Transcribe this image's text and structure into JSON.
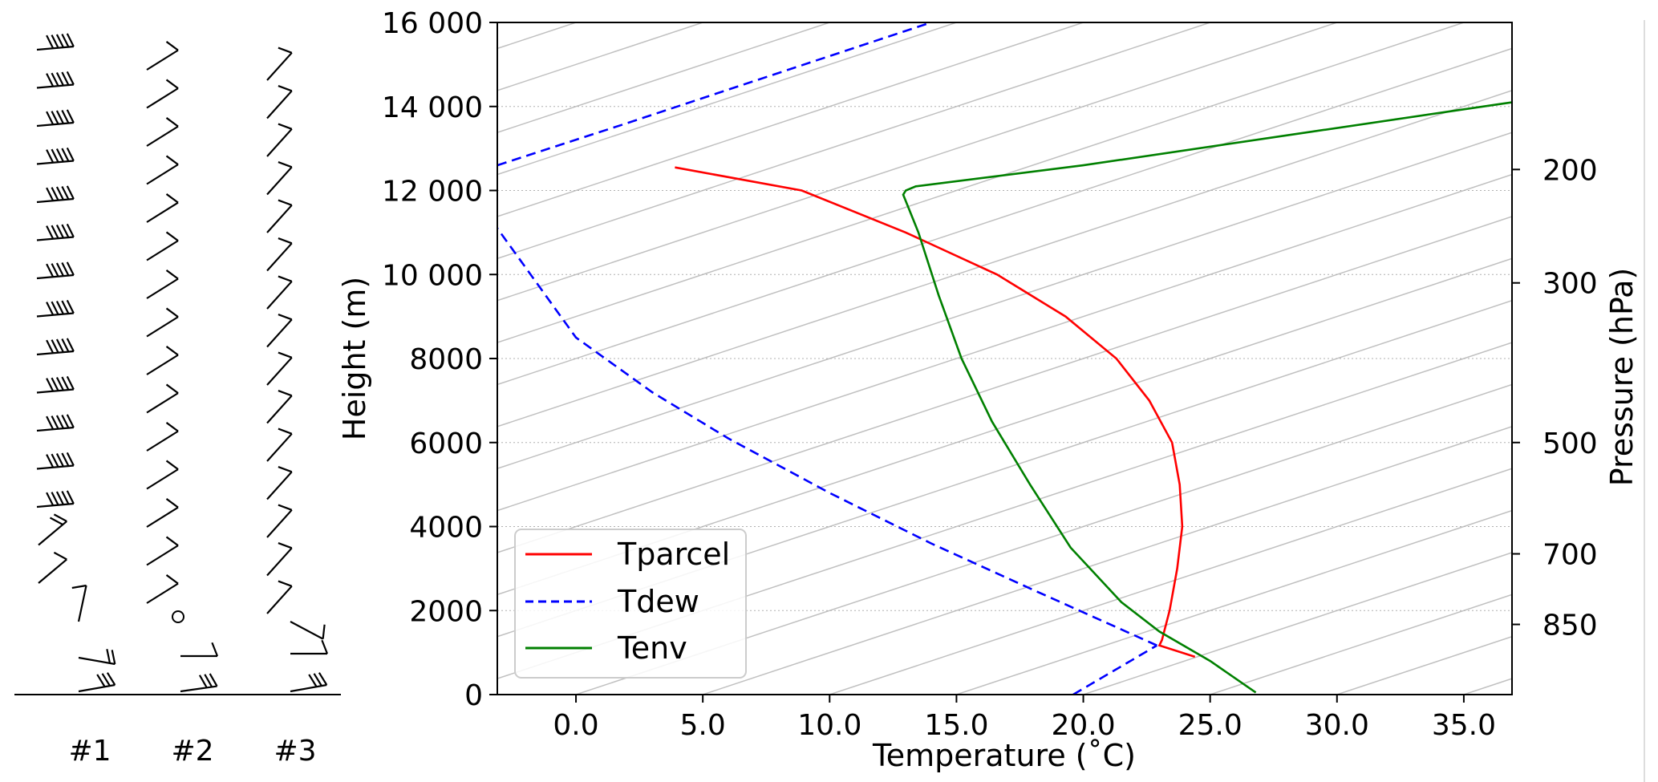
{
  "chart_data": {
    "type": "line",
    "title": "",
    "xlabel": "Temperature (˚C)",
    "ylabel": "Height (m)",
    "y2label": "Pressure (hPa)",
    "xlim": [
      -3.1,
      36.9
    ],
    "ylim": [
      0,
      16000
    ],
    "xticks": [
      0,
      5,
      10,
      15,
      20,
      25,
      30,
      35
    ],
    "xtick_labels": [
      "0.0",
      "5.0",
      "10.0",
      "15.0",
      "20.0",
      "25.0",
      "30.0",
      "35.0"
    ],
    "yticks": [
      0,
      2000,
      4000,
      6000,
      8000,
      10000,
      12000,
      14000,
      16000
    ],
    "ytick_labels": [
      "0",
      "2000",
      "4000",
      "6000",
      "8000",
      "10 000",
      "12 000",
      "14 000",
      "16 000"
    ],
    "pressure_ticks": [
      {
        "label": "200",
        "height": 12500
      },
      {
        "label": "300",
        "height": 9800
      },
      {
        "label": "500",
        "height": 6000
      },
      {
        "label": "700",
        "height": 3350
      },
      {
        "label": "850",
        "height": 1670
      }
    ],
    "grid": "horizontal dotted",
    "skew_isotherms": true,
    "legend_position": "lower-left",
    "series": [
      {
        "name": "Tparcel",
        "color": "#ff0000",
        "style": "solid",
        "points": [
          [
            24.4,
            900
          ],
          [
            23.0,
            1170
          ],
          [
            23.1,
            1300
          ],
          [
            23.4,
            2000
          ],
          [
            23.7,
            3000
          ],
          [
            23.9,
            4000
          ],
          [
            23.8,
            5000
          ],
          [
            23.5,
            6000
          ],
          [
            22.6,
            7000
          ],
          [
            21.3,
            8000
          ],
          [
            19.3,
            9000
          ],
          [
            16.6,
            10000
          ],
          [
            13.0,
            11000
          ],
          [
            8.9,
            12000
          ],
          [
            3.9,
            12550
          ]
        ]
      },
      {
        "name": "Tdew",
        "color": "#0000ff",
        "style": "dashed",
        "segments": [
          [
            [
              19.6,
              0
            ],
            [
              22.9,
              1170
            ]
          ],
          [
            [
              22.9,
              1170
            ],
            [
              18.0,
              2500
            ],
            [
              14.0,
              3600
            ],
            [
              10.0,
              4800
            ],
            [
              6.0,
              6100
            ],
            [
              3.0,
              7200
            ],
            [
              0.0,
              8500
            ],
            [
              -3.1,
              11100
            ]
          ],
          [
            [
              -3.1,
              12600
            ],
            [
              2.0,
              13600
            ],
            [
              7.0,
              14600
            ],
            [
              14.0,
              16000
            ]
          ]
        ]
      },
      {
        "name": "Tenv",
        "color": "#008000",
        "style": "solid",
        "points": [
          [
            26.8,
            50
          ],
          [
            25.0,
            800
          ],
          [
            23.0,
            1500
          ],
          [
            21.5,
            2200
          ],
          [
            19.5,
            3500
          ],
          [
            17.9,
            5000
          ],
          [
            16.4,
            6500
          ],
          [
            15.2,
            8000
          ],
          [
            14.3,
            9500
          ],
          [
            13.5,
            11000
          ],
          [
            12.9,
            11900
          ],
          [
            13.0,
            12000
          ],
          [
            13.4,
            12100
          ],
          [
            20.0,
            12600
          ],
          [
            29.0,
            13400
          ],
          [
            36.9,
            14100
          ]
        ]
      }
    ],
    "wind_profiles": {
      "column_labels": [
        "#1",
        "#2",
        "#3"
      ]
    }
  }
}
